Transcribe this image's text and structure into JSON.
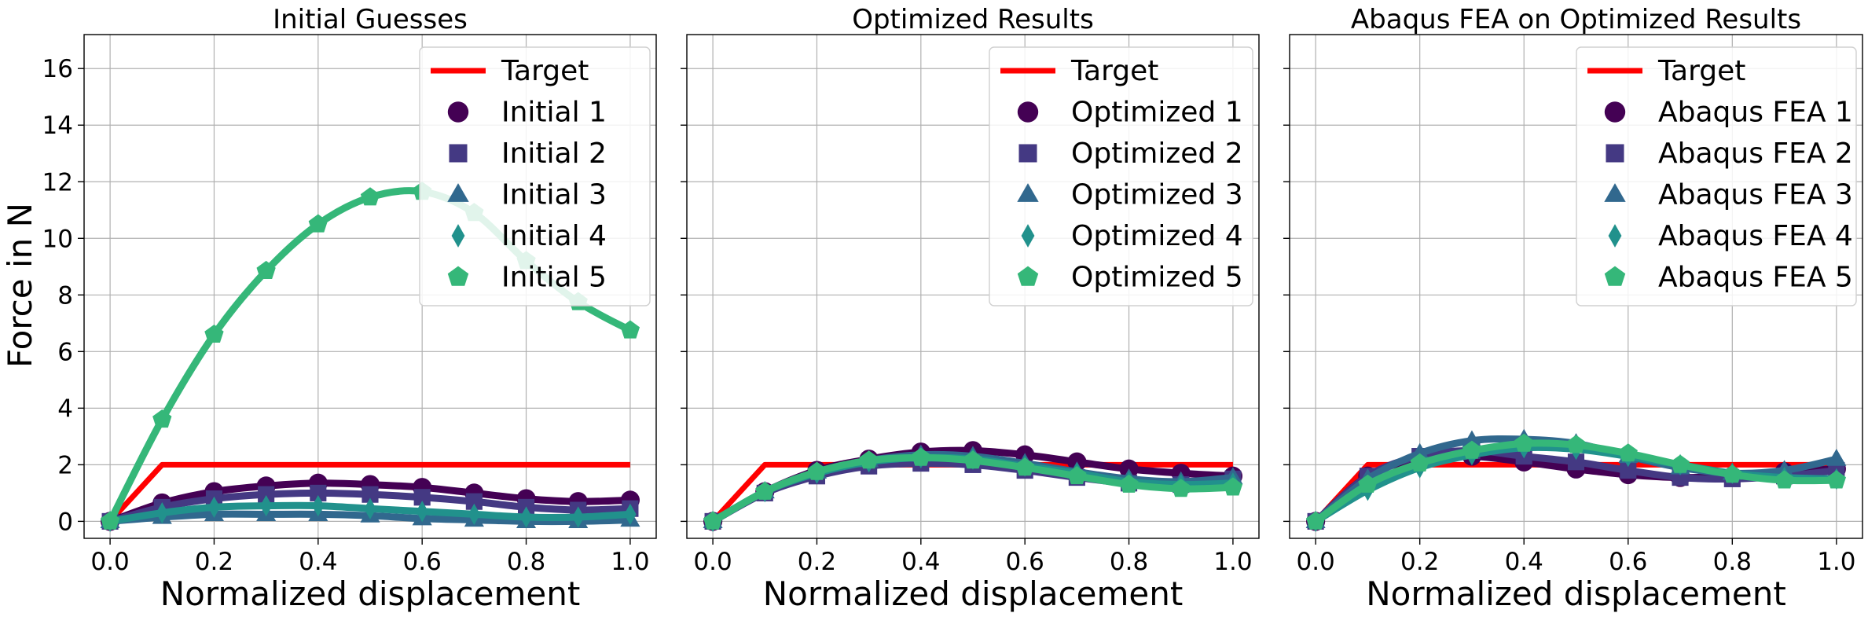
{
  "figure": {
    "ylabel": "Force in N"
  },
  "chart_data": [
    {
      "type": "line",
      "title": "Initial Guesses",
      "xlabel": "Normalized displacement",
      "ylabel": "Force in N",
      "xlim": [
        -0.05,
        1.05
      ],
      "ylim": [
        -0.6,
        17.2
      ],
      "xticks": [
        0.0,
        0.2,
        0.4,
        0.6,
        0.8,
        1.0
      ],
      "yticks": [
        0,
        2,
        4,
        6,
        8,
        10,
        12,
        14,
        16
      ],
      "grid": true,
      "legend": "top-right",
      "target": {
        "name": "Target",
        "x": [
          0,
          0.1,
          1.0
        ],
        "y": [
          0,
          2,
          2
        ],
        "color": "#ff0000"
      },
      "x": [
        0,
        0.1,
        0.2,
        0.3,
        0.4,
        0.5,
        0.6,
        0.7,
        0.8,
        0.9,
        1.0
      ],
      "series": [
        {
          "name": "Initial 1",
          "marker": "circle",
          "color": "#440154",
          "values": [
            0,
            0.65,
            1.05,
            1.25,
            1.35,
            1.3,
            1.2,
            1.0,
            0.8,
            0.7,
            0.75
          ]
        },
        {
          "name": "Initial 2",
          "marker": "square",
          "color": "#443983",
          "values": [
            0,
            0.5,
            0.8,
            0.95,
            1.0,
            0.95,
            0.85,
            0.7,
            0.5,
            0.4,
            0.45
          ]
        },
        {
          "name": "Initial 3",
          "marker": "triangle",
          "color": "#31688e",
          "values": [
            0,
            0.15,
            0.25,
            0.25,
            0.25,
            0.2,
            0.1,
            0.05,
            0.0,
            0.0,
            0.05
          ]
        },
        {
          "name": "Initial 4",
          "marker": "diamond",
          "color": "#21918c",
          "values": [
            0,
            0.3,
            0.5,
            0.55,
            0.55,
            0.45,
            0.35,
            0.25,
            0.15,
            0.15,
            0.25
          ]
        },
        {
          "name": "Initial 5",
          "marker": "pentagon",
          "color": "#35b779",
          "values": [
            0,
            3.6,
            6.6,
            8.85,
            10.5,
            11.45,
            11.65,
            10.9,
            9.2,
            7.75,
            6.75
          ]
        }
      ]
    },
    {
      "type": "line",
      "title": "Optimized Results",
      "xlabel": "Normalized displacement",
      "xlim": [
        -0.05,
        1.05
      ],
      "ylim": [
        -0.6,
        17.2
      ],
      "xticks": [
        0.0,
        0.2,
        0.4,
        0.6,
        0.8,
        1.0
      ],
      "yticks": [
        0,
        2,
        4,
        6,
        8,
        10,
        12,
        14,
        16
      ],
      "grid": true,
      "legend": "top-right",
      "target": {
        "name": "Target",
        "x": [
          0,
          0.1,
          1.0
        ],
        "y": [
          0,
          2,
          2
        ],
        "color": "#ff0000"
      },
      "x": [
        0,
        0.1,
        0.2,
        0.3,
        0.4,
        0.5,
        0.6,
        0.7,
        0.8,
        0.9,
        1.0
      ],
      "series": [
        {
          "name": "Optimized 1",
          "marker": "circle",
          "color": "#440154",
          "values": [
            0,
            1.05,
            1.8,
            2.2,
            2.45,
            2.5,
            2.35,
            2.1,
            1.85,
            1.7,
            1.6
          ]
        },
        {
          "name": "Optimized 2",
          "marker": "square",
          "color": "#443983",
          "values": [
            0,
            1.0,
            1.6,
            1.95,
            2.05,
            2.0,
            1.8,
            1.55,
            1.35,
            1.3,
            1.5
          ]
        },
        {
          "name": "Optimized 3",
          "marker": "triangle",
          "color": "#31688e",
          "values": [
            0,
            1.05,
            1.75,
            2.15,
            2.35,
            2.3,
            2.05,
            1.75,
            1.5,
            1.4,
            1.55
          ]
        },
        {
          "name": "Optimized 4",
          "marker": "diamond",
          "color": "#21918c",
          "values": [
            0,
            1.05,
            1.7,
            2.1,
            2.25,
            2.2,
            1.95,
            1.7,
            1.4,
            1.3,
            1.35
          ]
        },
        {
          "name": "Optimized 5",
          "marker": "pentagon",
          "color": "#35b779",
          "values": [
            0,
            1.05,
            1.75,
            2.15,
            2.25,
            2.15,
            1.9,
            1.6,
            1.3,
            1.15,
            1.2
          ]
        }
      ]
    },
    {
      "type": "line",
      "title": "Abaqus FEA on Optimized Results",
      "xlabel": "Normalized displacement",
      "xlim": [
        -0.05,
        1.05
      ],
      "ylim": [
        -0.6,
        17.2
      ],
      "xticks": [
        0.0,
        0.2,
        0.4,
        0.6,
        0.8,
        1.0
      ],
      "yticks": [
        0,
        2,
        4,
        6,
        8,
        10,
        12,
        14,
        16
      ],
      "grid": true,
      "legend": "top-right",
      "target": {
        "name": "Target",
        "x": [
          0,
          0.1,
          1.0
        ],
        "y": [
          0,
          2,
          2
        ],
        "color": "#ff0000"
      },
      "x": [
        0,
        0.1,
        0.2,
        0.3,
        0.4,
        0.5,
        0.6,
        0.7,
        0.8,
        0.9,
        1.0
      ],
      "series": [
        {
          "name": "Abaqus FEA 1",
          "marker": "circle",
          "color": "#440154",
          "values": [
            0,
            1.6,
            2.2,
            2.3,
            2.1,
            1.85,
            1.65,
            1.55,
            1.6,
            1.75,
            1.85
          ]
        },
        {
          "name": "Abaqus FEA 2",
          "marker": "square",
          "color": "#443983",
          "values": [
            0,
            1.6,
            2.3,
            2.5,
            2.3,
            2.1,
            1.8,
            1.55,
            1.5,
            1.6,
            1.8
          ]
        },
        {
          "name": "Abaqus FEA 3",
          "marker": "triangle",
          "color": "#31688e",
          "values": [
            0,
            1.5,
            2.4,
            2.85,
            2.9,
            2.75,
            2.3,
            1.9,
            1.7,
            1.8,
            2.2
          ]
        },
        {
          "name": "Abaqus FEA 4",
          "marker": "diamond",
          "color": "#21918c",
          "values": [
            0,
            1.1,
            1.9,
            2.35,
            2.6,
            2.55,
            2.3,
            2.0,
            1.7,
            1.55,
            1.5
          ]
        },
        {
          "name": "Abaqus FEA 5",
          "marker": "pentagon",
          "color": "#35b779",
          "values": [
            0,
            1.3,
            2.05,
            2.5,
            2.75,
            2.7,
            2.4,
            2.0,
            1.65,
            1.45,
            1.45
          ]
        }
      ]
    }
  ]
}
